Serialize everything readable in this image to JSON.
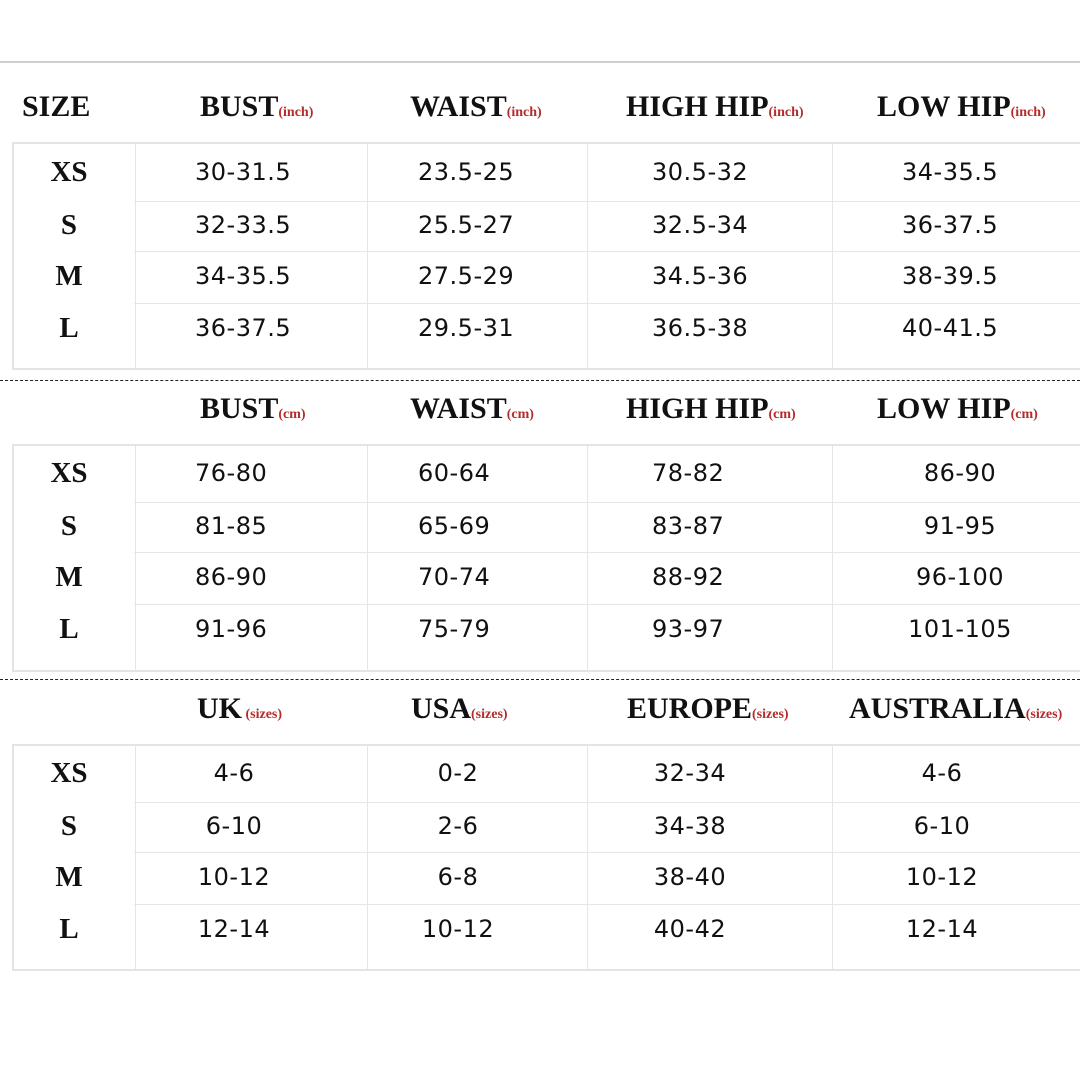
{
  "size_header": "SIZE",
  "sizes": [
    "XS",
    "S",
    "M",
    "L"
  ],
  "sections": [
    {
      "headers": [
        {
          "label": "BUST",
          "unit": "(inch)"
        },
        {
          "label": "WAIST",
          "unit": "(inch)"
        },
        {
          "label": "HIGH HIP",
          "unit": "(inch)"
        },
        {
          "label": "LOW HIP",
          "unit": "(inch)"
        }
      ],
      "rows": [
        [
          "30-31.5",
          "23.5-25",
          "30.5-32",
          "34-35.5"
        ],
        [
          "32-33.5",
          "25.5-27",
          "32.5-34",
          "36-37.5"
        ],
        [
          "34-35.5",
          "27.5-29",
          "34.5-36",
          "38-39.5"
        ],
        [
          "36-37.5",
          "29.5-31",
          "36.5-38",
          "40-41.5"
        ]
      ]
    },
    {
      "headers": [
        {
          "label": "BUST",
          "unit": "(cm)"
        },
        {
          "label": "WAIST",
          "unit": "(cm)"
        },
        {
          "label": "HIGH HIP",
          "unit": "(cm)"
        },
        {
          "label": "LOW HIP",
          "unit": "(cm)"
        }
      ],
      "rows": [
        [
          "76-80",
          "60-64",
          "78-82",
          "86-90"
        ],
        [
          "81-85",
          "65-69",
          "83-87",
          "91-95"
        ],
        [
          "86-90",
          "70-74",
          "88-92",
          "96-100"
        ],
        [
          "91-96",
          "75-79",
          "93-97",
          "101-105"
        ]
      ]
    },
    {
      "headers": [
        {
          "label": "UK",
          "unit": " (sizes)"
        },
        {
          "label": "USA",
          "unit": "(sizes)"
        },
        {
          "label": "EUROPE",
          "unit": "(sizes)"
        },
        {
          "label": "AUSTRALIA",
          "unit": "(sizes)"
        }
      ],
      "rows": [
        [
          "4-6",
          "0-2",
          "32-34",
          "4-6"
        ],
        [
          "6-10",
          "2-6",
          "34-38",
          "6-10"
        ],
        [
          "10-12",
          "6-8",
          "38-40",
          "10-12"
        ],
        [
          "12-14",
          "10-12",
          "40-42",
          "12-14"
        ]
      ]
    }
  ],
  "colors": {
    "unit_text": "#b52a2a",
    "grid": "#e6e6e6"
  }
}
